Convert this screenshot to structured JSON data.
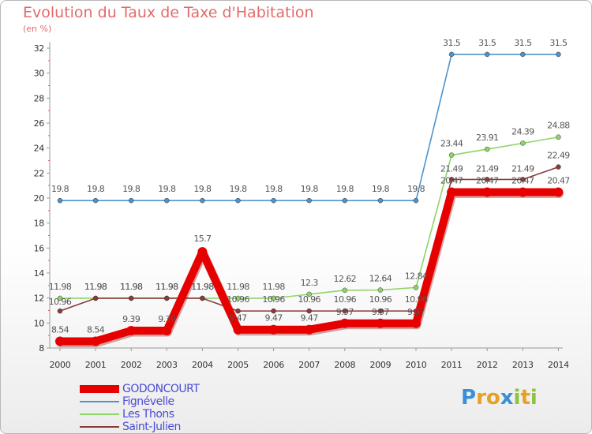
{
  "chart_data": {
    "type": "line",
    "title": "Evolution du Taux de Taxe d'Habitation",
    "subtitle": "(en %)",
    "xlabel": "",
    "ylabel": "(en %)",
    "categories": [
      "2000",
      "2001",
      "2002",
      "2003",
      "2004",
      "2005",
      "2006",
      "2007",
      "2008",
      "2009",
      "2010",
      "2011",
      "2012",
      "2013",
      "2014"
    ],
    "ylim": [
      8,
      32
    ],
    "yticks": [
      8,
      10,
      12,
      14,
      16,
      18,
      20,
      22,
      24,
      26,
      28,
      30,
      32
    ],
    "grid": false,
    "legend_position": "bottom-left",
    "series": [
      {
        "name": "GODONCOURT",
        "color": "#e60000",
        "values": [
          8.54,
          8.54,
          9.39,
          9.39,
          15.7,
          9.47,
          9.47,
          9.47,
          9.97,
          9.97,
          9.97,
          20.47,
          20.47,
          20.47,
          20.47
        ],
        "labels": [
          "8.54",
          "8.54",
          "9.39",
          "9.39",
          "15.7",
          "9.47",
          "9.47",
          "9.47",
          "9.97",
          "9.97",
          "9.97",
          "20.47",
          "20.47",
          "20.47",
          "20.47"
        ]
      },
      {
        "name": "Fignévelle",
        "color": "#4f93c9",
        "values": [
          19.8,
          19.8,
          19.8,
          19.8,
          19.8,
          19.8,
          19.8,
          19.8,
          19.8,
          19.8,
          19.8,
          31.5,
          31.5,
          31.5,
          31.5
        ],
        "labels": [
          "19.8",
          "19.8",
          "19.8",
          "19.8",
          "19.8",
          "19.8",
          "19.8",
          "19.8",
          "19.8",
          "19.8",
          "19.8",
          "31.5",
          "31.5",
          "31.5",
          "31.5"
        ]
      },
      {
        "name": "Les Thons",
        "color": "#8fd46a",
        "values": [
          11.98,
          11.98,
          11.98,
          11.98,
          11.98,
          11.98,
          11.98,
          12.3,
          12.62,
          12.64,
          12.84,
          23.44,
          23.91,
          24.39,
          24.88
        ],
        "labels": [
          "11.98",
          "11.98",
          "11.98",
          "11.98",
          "11.98",
          "11.98",
          "11.98",
          "12.3",
          "12.62",
          "12.64",
          "12.84",
          "23.44",
          "23.91",
          "24.39",
          "24.88"
        ]
      },
      {
        "name": "Saint-Julien",
        "color": "#8b3a3a",
        "values": [
          10.96,
          11.98,
          11.98,
          11.98,
          11.98,
          10.96,
          10.96,
          10.96,
          10.96,
          10.96,
          10.96,
          21.49,
          21.49,
          21.49,
          22.49
        ],
        "labels": [
          "10.96",
          "11.98",
          "11.98",
          "11.98",
          "11.98",
          "10.96",
          "10.96",
          "10.96",
          "10.96",
          "10.96",
          "10.96",
          "21.49",
          "21.49",
          "21.49",
          "22.49"
        ]
      }
    ]
  },
  "legend": {
    "items": [
      "GODONCOURT",
      "Fignévelle",
      "Les Thons",
      "Saint-Julien"
    ]
  },
  "logo": {
    "letters": [
      "P",
      "r",
      "o",
      "x",
      "i",
      "t",
      "i"
    ],
    "colors": [
      "#3a8fd6",
      "#e8a020",
      "#e8a020",
      "#3a8fd6",
      "#8bc43f",
      "#e8a020",
      "#8bc43f"
    ]
  }
}
